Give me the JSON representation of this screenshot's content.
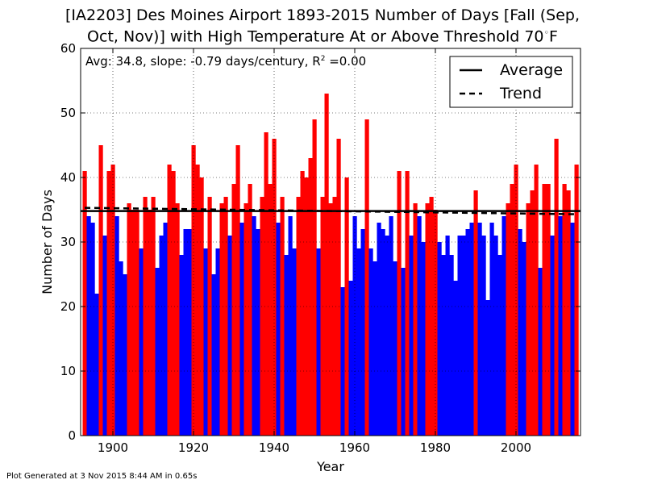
{
  "chart_data": {
    "type": "bar",
    "title_line1": "[IA2203] Des Moines Airport 1893-2015 Number of Days [Fall (Sep,",
    "title_line2": "Oct, Nov)] with High Temperature At or Above Threshold 70",
    "title_unit": "F",
    "xlabel": "Year",
    "ylabel": "Number of Days",
    "xlim": [
      1892,
      2016
    ],
    "ylim": [
      0,
      60
    ],
    "xticks": [
      1900,
      1920,
      1940,
      1960,
      1980,
      2000
    ],
    "yticks": [
      0,
      10,
      20,
      30,
      40,
      50,
      60
    ],
    "grid": true,
    "annotation": "Avg: 34.8, slope: -0.79 days/century, R",
    "annotation_tail": " =0.00",
    "average": 34.8,
    "trend": {
      "start_year": 1893,
      "start_value": 35.3,
      "end_year": 2015,
      "end_value": 34.3
    },
    "colors": {
      "above": "#ff0000",
      "below": "#0000ff",
      "average": "#000000",
      "trend": "#000000"
    },
    "legend": {
      "placement": "top-right",
      "entries": [
        {
          "label": "Average",
          "style": "solid"
        },
        {
          "label": "Trend",
          "style": "dashed"
        }
      ]
    },
    "years": [
      1893,
      1894,
      1895,
      1896,
      1897,
      1898,
      1899,
      1900,
      1901,
      1902,
      1903,
      1904,
      1905,
      1906,
      1907,
      1908,
      1909,
      1910,
      1911,
      1912,
      1913,
      1914,
      1915,
      1916,
      1917,
      1918,
      1919,
      1920,
      1921,
      1922,
      1923,
      1924,
      1925,
      1926,
      1927,
      1928,
      1929,
      1930,
      1931,
      1932,
      1933,
      1934,
      1935,
      1936,
      1937,
      1938,
      1939,
      1940,
      1941,
      1942,
      1943,
      1944,
      1945,
      1946,
      1947,
      1948,
      1949,
      1950,
      1951,
      1952,
      1953,
      1954,
      1955,
      1956,
      1957,
      1958,
      1959,
      1960,
      1961,
      1962,
      1963,
      1964,
      1965,
      1966,
      1967,
      1968,
      1969,
      1970,
      1971,
      1972,
      1973,
      1974,
      1975,
      1976,
      1977,
      1978,
      1979,
      1980,
      1981,
      1982,
      1983,
      1984,
      1985,
      1986,
      1987,
      1988,
      1989,
      1990,
      1991,
      1992,
      1993,
      1994,
      1995,
      1996,
      1997,
      1998,
      1999,
      2000,
      2001,
      2002,
      2003,
      2004,
      2005,
      2006,
      2007,
      2008,
      2009,
      2010,
      2011,
      2012,
      2013,
      2014,
      2015
    ],
    "values": [
      41,
      34,
      33,
      22,
      45,
      31,
      41,
      42,
      34,
      27,
      25,
      36,
      35,
      35,
      29,
      37,
      35,
      37,
      26,
      31,
      33,
      42,
      41,
      36,
      28,
      32,
      32,
      45,
      42,
      40,
      29,
      37,
      25,
      29,
      36,
      37,
      31,
      39,
      45,
      33,
      36,
      39,
      34,
      32,
      37,
      47,
      39,
      46,
      33,
      37,
      28,
      34,
      29,
      37,
      41,
      40,
      43,
      49,
      29,
      37,
      53,
      36,
      37,
      46,
      23,
      40,
      24,
      34,
      29,
      32,
      49,
      29,
      27,
      33,
      32,
      31,
      34,
      27,
      41,
      26,
      41,
      31,
      36,
      34,
      30,
      36,
      37,
      35,
      30,
      28,
      31,
      28,
      24,
      31,
      31,
      32,
      33,
      38,
      33,
      31,
      21,
      33,
      31,
      28,
      34,
      36,
      39,
      42,
      32,
      30,
      36,
      38,
      42,
      26,
      39,
      39,
      31,
      46,
      34,
      39,
      38,
      33,
      42
    ]
  },
  "footer": "Plot Generated at 3 Nov 2015 8:44 AM in 0.65s"
}
